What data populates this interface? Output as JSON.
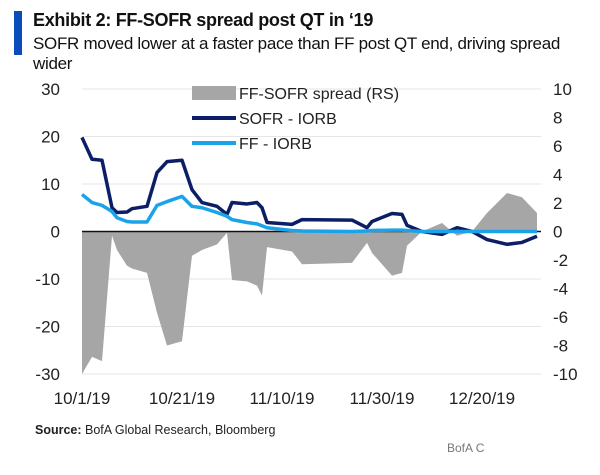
{
  "header": {
    "title": "Exhibit 2: FF-SOFR spread post QT in ‘19",
    "subtitle": "SOFR moved lower at a faster pace than FF post QT end, driving spread wider"
  },
  "chart_data": {
    "type": "line",
    "x": [
      "10/1/19",
      "10/3/19",
      "10/5/19",
      "10/7/19",
      "10/8/19",
      "10/10/19",
      "10/11/19",
      "10/14/19",
      "10/16/19",
      "10/18/19",
      "10/21/19",
      "10/23/19",
      "10/25/19",
      "10/28/19",
      "10/30/19",
      "10/31/19",
      "11/3/19",
      "11/5/19",
      "11/6/19",
      "11/7/19",
      "11/12/19",
      "11/14/19",
      "11/24/19",
      "11/27/19",
      "11/28/19",
      "12/2/19",
      "12/4/19",
      "12/5/19",
      "12/8/19",
      "12/12/19",
      "12/15/19",
      "12/18/19",
      "12/21/19",
      "12/25/19",
      "12/28/19",
      "12/31/19"
    ],
    "x_ticks": [
      "10/1/19",
      "10/21/19",
      "11/10/19",
      "11/30/19",
      "12/20/19"
    ],
    "y_left": {
      "ticks": [
        30,
        20,
        10,
        0,
        -10,
        -20,
        -30
      ],
      "range": [
        -30,
        30
      ]
    },
    "y_right": {
      "ticks": [
        10,
        8,
        6,
        4,
        2,
        0,
        -2,
        -4,
        -6,
        -8,
        -10
      ],
      "range": [
        -10,
        10
      ]
    },
    "grid": true,
    "legend_position": "top-center",
    "series": [
      {
        "name": "FF-SOFR spread (RS)",
        "type": "area",
        "axis": "right",
        "color": "#a6a6a6",
        "values": [
          -10,
          -8.8,
          -9.1,
          -0.3,
          -1.3,
          -2.4,
          -2.6,
          -2.9,
          -5.7,
          -8,
          -7.7,
          -1.7,
          -1.3,
          -0.9,
          -0.1,
          -3.4,
          -3.5,
          -3.8,
          -4.5,
          -1.1,
          -1.4,
          -2.3,
          -2.2,
          -0.8,
          -1.5,
          -3.1,
          -2.9,
          -1,
          0,
          0.6,
          -0.3,
          0,
          1.3,
          2.7,
          2.4,
          1.3
        ]
      },
      {
        "name": "SOFR - IORB",
        "type": "line",
        "axis": "left",
        "color": "#0c1f66",
        "values": [
          19.8,
          15.2,
          15,
          5,
          4,
          4.1,
          4.8,
          5.3,
          12.4,
          14.7,
          15,
          8.8,
          6.1,
          5.3,
          3.6,
          6.1,
          5.8,
          6.1,
          5,
          1.9,
          1.5,
          2.5,
          2.4,
          0.8,
          2.1,
          3.8,
          3.6,
          1.3,
          0,
          -0.6,
          0.8,
          0,
          -1.7,
          -2.7,
          -2.3,
          -1
        ]
      },
      {
        "name": "FF - IORB",
        "type": "line",
        "axis": "left",
        "color": "#1aa3e8",
        "values": [
          7.8,
          6.1,
          5.5,
          4.2,
          2.9,
          2.1,
          2,
          2,
          5.5,
          6.3,
          7.4,
          5.3,
          5,
          4,
          3.2,
          2.5,
          1.9,
          1.6,
          1.2,
          0.8,
          0.2,
          0.1,
          0,
          0.1,
          0.2,
          0.3,
          0.3,
          0.2,
          0,
          0,
          0,
          0,
          0,
          0,
          0,
          0
        ]
      }
    ]
  },
  "footer": {
    "source_label": "Source:",
    "source_text": " BofA Global Research, Bloomberg",
    "watermark": "BofA C"
  }
}
